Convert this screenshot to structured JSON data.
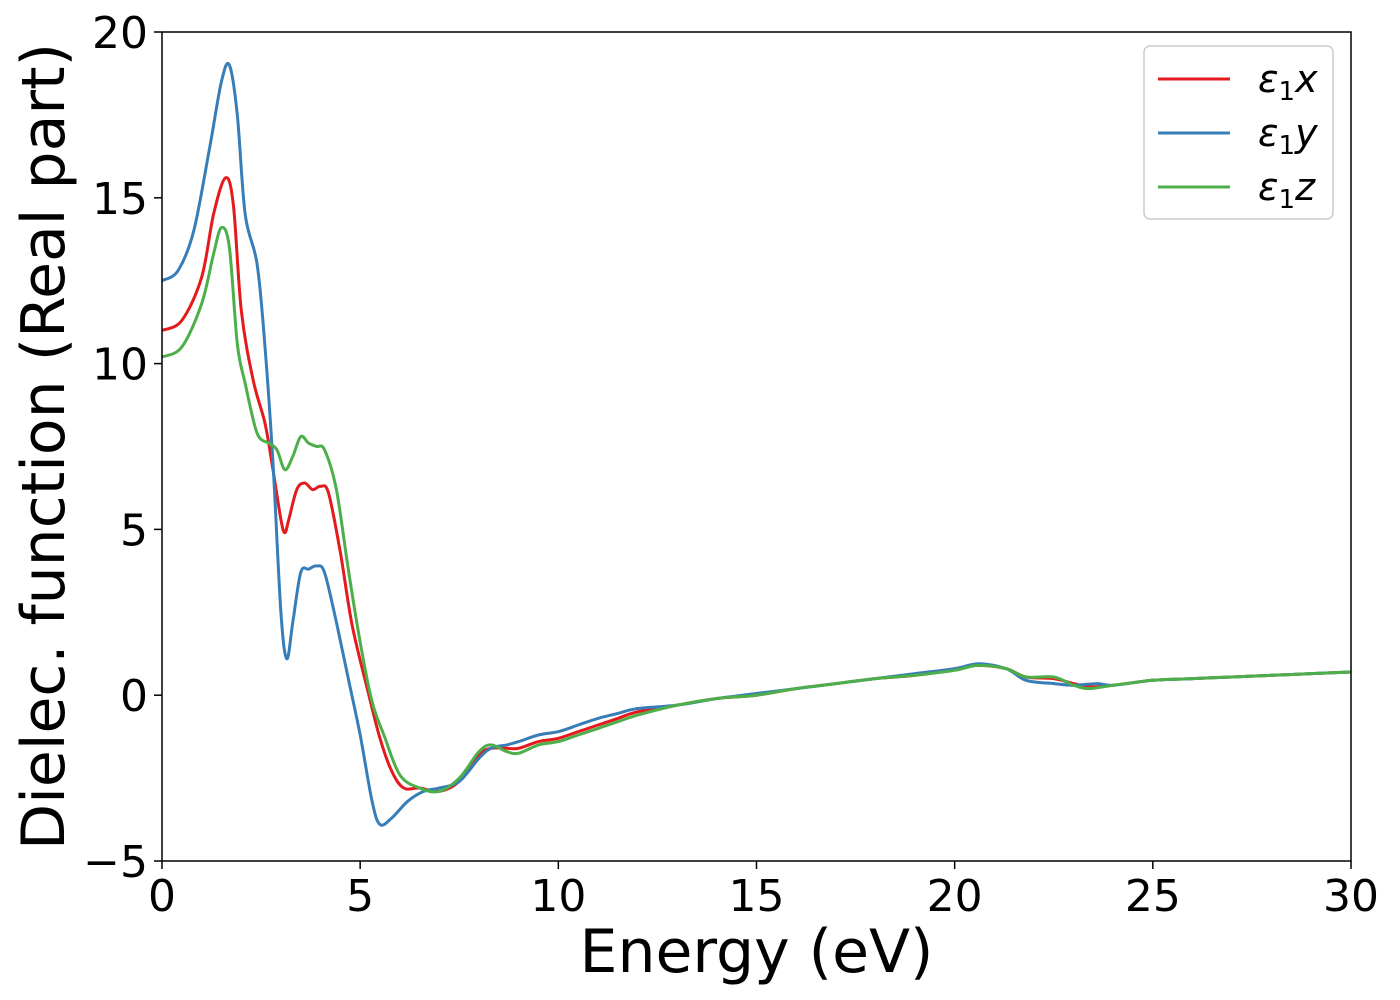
{
  "chart_data": {
    "type": "line",
    "title": "",
    "xlabel": "Energy (eV)",
    "ylabel": "Dielec. function (Real part)",
    "xlim": [
      0,
      30
    ],
    "ylim": [
      -5,
      20
    ],
    "xticks": [
      0,
      5,
      10,
      15,
      20,
      25,
      30
    ],
    "yticks": [
      -5,
      0,
      5,
      10,
      15,
      20
    ],
    "xtick_labels": [
      "0",
      "5",
      "10",
      "15",
      "20",
      "25",
      "30"
    ],
    "ytick_labels": [
      "−5",
      "0",
      "5",
      "10",
      "15",
      "20"
    ],
    "grid": false,
    "legend_position": "top-right",
    "series": [
      {
        "name": "ε1x",
        "legend_base": "ε",
        "legend_sub": "1",
        "legend_var": "x",
        "color": "#e41a1c",
        "points": [
          [
            0,
            11
          ],
          [
            0.5,
            11.3
          ],
          [
            1,
            12.6
          ],
          [
            1.3,
            14.5
          ],
          [
            1.6,
            15.6
          ],
          [
            1.8,
            14.8
          ],
          [
            2.0,
            11.6
          ],
          [
            2.3,
            9.5
          ],
          [
            2.6,
            8.2
          ],
          [
            2.8,
            6.8
          ],
          [
            3.0,
            5.3
          ],
          [
            3.1,
            4.9
          ],
          [
            3.2,
            5.3
          ],
          [
            3.4,
            6.2
          ],
          [
            3.6,
            6.4
          ],
          [
            3.8,
            6.2
          ],
          [
            4.0,
            6.3
          ],
          [
            4.2,
            6.1
          ],
          [
            4.5,
            4.3
          ],
          [
            4.8,
            2.1
          ],
          [
            5.2,
            0.1
          ],
          [
            5.5,
            -1.3
          ],
          [
            5.8,
            -2.3
          ],
          [
            6.1,
            -2.8
          ],
          [
            6.5,
            -2.8
          ],
          [
            7.0,
            -2.9
          ],
          [
            7.5,
            -2.6
          ],
          [
            8.0,
            -1.8
          ],
          [
            8.3,
            -1.6
          ],
          [
            8.7,
            -1.6
          ],
          [
            9.0,
            -1.6
          ],
          [
            9.5,
            -1.4
          ],
          [
            10.0,
            -1.3
          ],
          [
            10.5,
            -1.1
          ],
          [
            11,
            -0.9
          ],
          [
            11.5,
            -0.7
          ],
          [
            12,
            -0.5
          ],
          [
            13,
            -0.3
          ],
          [
            14,
            -0.1
          ],
          [
            15,
            0.0
          ],
          [
            16,
            0.2
          ],
          [
            17,
            0.35
          ],
          [
            18,
            0.5
          ],
          [
            19,
            0.6
          ],
          [
            20,
            0.8
          ],
          [
            20.6,
            0.9
          ],
          [
            21.3,
            0.8
          ],
          [
            21.8,
            0.55
          ],
          [
            22.5,
            0.5
          ],
          [
            23,
            0.35
          ],
          [
            23.4,
            0.25
          ],
          [
            24,
            0.3
          ],
          [
            25,
            0.45
          ],
          [
            26,
            0.5
          ],
          [
            27,
            0.55
          ],
          [
            28,
            0.6
          ],
          [
            29,
            0.65
          ],
          [
            30,
            0.7
          ]
        ]
      },
      {
        "name": "ε1y",
        "legend_base": "ε",
        "legend_sub": "1",
        "legend_var": "y",
        "color": "#377eb8",
        "points": [
          [
            0,
            12.5
          ],
          [
            0.4,
            12.8
          ],
          [
            0.8,
            14
          ],
          [
            1.2,
            16.5
          ],
          [
            1.5,
            18.5
          ],
          [
            1.7,
            19
          ],
          [
            1.9,
            17.5
          ],
          [
            2.1,
            14.5
          ],
          [
            2.4,
            13
          ],
          [
            2.6,
            10.5
          ],
          [
            2.8,
            7
          ],
          [
            3.0,
            2.5
          ],
          [
            3.15,
            1.1
          ],
          [
            3.3,
            2.2
          ],
          [
            3.5,
            3.7
          ],
          [
            3.7,
            3.8
          ],
          [
            3.9,
            3.9
          ],
          [
            4.1,
            3.7
          ],
          [
            4.4,
            2.2
          ],
          [
            4.7,
            0.5
          ],
          [
            5.0,
            -1.2
          ],
          [
            5.3,
            -3.2
          ],
          [
            5.5,
            -3.9
          ],
          [
            5.8,
            -3.7
          ],
          [
            6.2,
            -3.2
          ],
          [
            6.6,
            -2.9
          ],
          [
            7.0,
            -2.8
          ],
          [
            7.5,
            -2.6
          ],
          [
            8.0,
            -1.9
          ],
          [
            8.3,
            -1.6
          ],
          [
            8.7,
            -1.5
          ],
          [
            9.0,
            -1.4
          ],
          [
            9.5,
            -1.2
          ],
          [
            10.0,
            -1.1
          ],
          [
            10.5,
            -0.9
          ],
          [
            11,
            -0.7
          ],
          [
            11.5,
            -0.55
          ],
          [
            12,
            -0.4
          ],
          [
            13,
            -0.3
          ],
          [
            14,
            -0.1
          ],
          [
            15,
            0.05
          ],
          [
            16,
            0.2
          ],
          [
            17,
            0.35
          ],
          [
            18,
            0.5
          ],
          [
            19,
            0.65
          ],
          [
            20,
            0.8
          ],
          [
            20.6,
            0.95
          ],
          [
            21.3,
            0.8
          ],
          [
            21.8,
            0.45
          ],
          [
            22.5,
            0.35
          ],
          [
            23,
            0.3
          ],
          [
            23.6,
            0.35
          ],
          [
            24,
            0.3
          ],
          [
            25,
            0.45
          ],
          [
            26,
            0.5
          ],
          [
            27,
            0.55
          ],
          [
            28,
            0.6
          ],
          [
            29,
            0.65
          ],
          [
            30,
            0.7
          ]
        ]
      },
      {
        "name": "ε1z",
        "legend_base": "ε",
        "legend_sub": "1",
        "legend_var": "z",
        "color": "#4daf4a",
        "points": [
          [
            0,
            10.2
          ],
          [
            0.5,
            10.5
          ],
          [
            1,
            11.8
          ],
          [
            1.3,
            13.3
          ],
          [
            1.5,
            14.1
          ],
          [
            1.7,
            13.5
          ],
          [
            1.9,
            10.6
          ],
          [
            2.1,
            9.4
          ],
          [
            2.4,
            7.9
          ],
          [
            2.7,
            7.6
          ],
          [
            2.9,
            7.4
          ],
          [
            3.1,
            6.8
          ],
          [
            3.3,
            7.2
          ],
          [
            3.5,
            7.8
          ],
          [
            3.7,
            7.6
          ],
          [
            3.9,
            7.5
          ],
          [
            4.1,
            7.4
          ],
          [
            4.4,
            6.2
          ],
          [
            4.7,
            3.8
          ],
          [
            5.0,
            1.6
          ],
          [
            5.3,
            -0.2
          ],
          [
            5.6,
            -1.2
          ],
          [
            6.0,
            -2.4
          ],
          [
            6.5,
            -2.8
          ],
          [
            7.0,
            -2.9
          ],
          [
            7.5,
            -2.5
          ],
          [
            8.0,
            -1.7
          ],
          [
            8.3,
            -1.5
          ],
          [
            8.7,
            -1.7
          ],
          [
            9.0,
            -1.75
          ],
          [
            9.5,
            -1.5
          ],
          [
            10.0,
            -1.4
          ],
          [
            10.5,
            -1.2
          ],
          [
            11,
            -1.0
          ],
          [
            11.5,
            -0.8
          ],
          [
            12,
            -0.6
          ],
          [
            13,
            -0.3
          ],
          [
            14,
            -0.1
          ],
          [
            15,
            0.0
          ],
          [
            16,
            0.2
          ],
          [
            17,
            0.35
          ],
          [
            18,
            0.5
          ],
          [
            19,
            0.6
          ],
          [
            20,
            0.75
          ],
          [
            20.6,
            0.9
          ],
          [
            21.3,
            0.8
          ],
          [
            21.8,
            0.55
          ],
          [
            22.5,
            0.55
          ],
          [
            23,
            0.3
          ],
          [
            23.4,
            0.2
          ],
          [
            24,
            0.3
          ],
          [
            25,
            0.45
          ],
          [
            26,
            0.5
          ],
          [
            27,
            0.55
          ],
          [
            28,
            0.6
          ],
          [
            29,
            0.65
          ],
          [
            30,
            0.7
          ]
        ]
      }
    ]
  }
}
